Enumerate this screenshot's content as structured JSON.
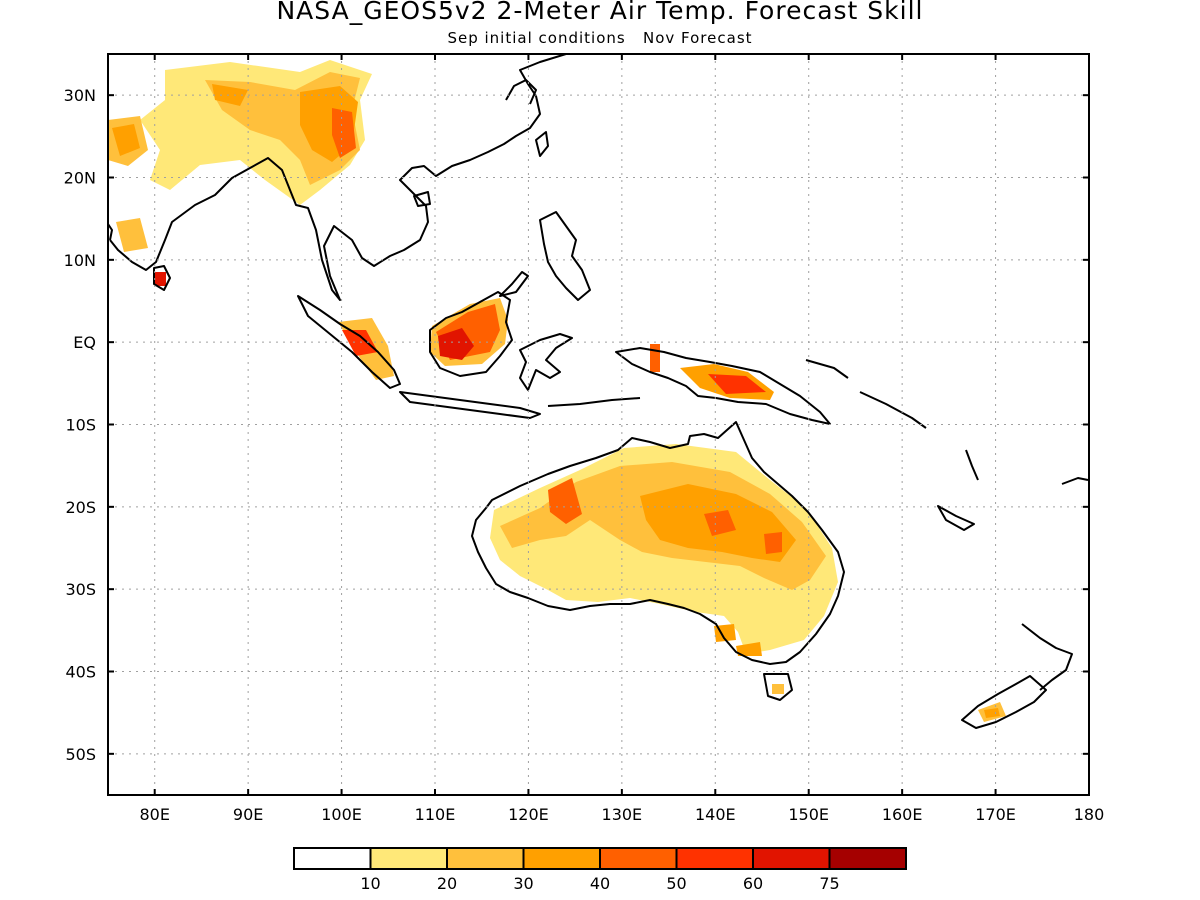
{
  "map": {
    "title": "NASA_GEOS5v2 2-Meter Air Temp. Forecast Skill",
    "subtitle": "Sep initial conditions   Nov Forecast",
    "lon_labels": [
      "80E",
      "90E",
      "100E",
      "110E",
      "120E",
      "130E",
      "140E",
      "150E",
      "160E",
      "170E",
      "180"
    ],
    "lat_labels": [
      "30N",
      "20N",
      "10N",
      "EQ",
      "10S",
      "20S",
      "30S",
      "40S",
      "50S"
    ],
    "gridlines": "dotted",
    "colorbar": {
      "colors": [
        "#ffffff",
        "#ffe878",
        "#ffc03c",
        "#ffa000",
        "#ff6000",
        "#ff3200",
        "#e11400",
        "#a50000"
      ],
      "labels": [
        "10",
        "20",
        "30",
        "40",
        "50",
        "60",
        "75"
      ]
    }
  },
  "chart_data": {
    "type": "heatmap",
    "title": "NASA_GEOS5v2 2-Meter Air Temp. Forecast Skill",
    "subtitle": "Sep initial conditions   Nov Forecast",
    "xlim": [
      75,
      180
    ],
    "ylim": [
      -55,
      35
    ],
    "xticks": [
      "80E",
      "90E",
      "100E",
      "110E",
      "120E",
      "130E",
      "140E",
      "150E",
      "160E",
      "170E",
      "180"
    ],
    "yticks": [
      "30N",
      "20N",
      "10N",
      "EQ",
      "10S",
      "20S",
      "30S",
      "40S",
      "50S"
    ],
    "levels": [
      10,
      20,
      30,
      40,
      50,
      60,
      75
    ],
    "grid": true
  }
}
